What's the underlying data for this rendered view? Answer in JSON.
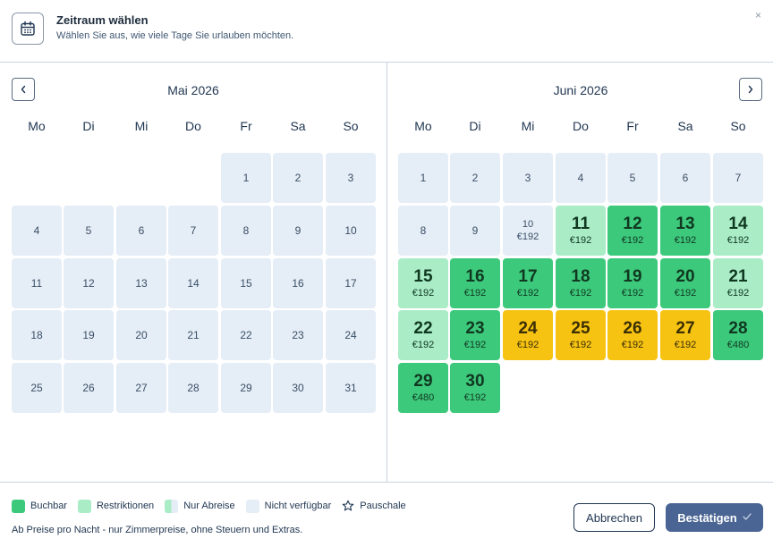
{
  "header": {
    "title": "Zeitraum wählen",
    "subtitle": "Wählen Sie aus, wie viele Tage Sie urlauben möchten.",
    "close_label": "×"
  },
  "weekdays": [
    "Mo",
    "Di",
    "Mi",
    "Do",
    "Fr",
    "Sa",
    "So"
  ],
  "months": [
    {
      "title": "Mai 2026",
      "start_offset": 4,
      "days": [
        {
          "d": "1",
          "s": "na"
        },
        {
          "d": "2",
          "s": "na"
        },
        {
          "d": "3",
          "s": "na"
        },
        {
          "d": "4",
          "s": "na"
        },
        {
          "d": "5",
          "s": "na"
        },
        {
          "d": "6",
          "s": "na"
        },
        {
          "d": "7",
          "s": "na"
        },
        {
          "d": "8",
          "s": "na"
        },
        {
          "d": "9",
          "s": "na"
        },
        {
          "d": "10",
          "s": "na"
        },
        {
          "d": "11",
          "s": "na"
        },
        {
          "d": "12",
          "s": "na"
        },
        {
          "d": "13",
          "s": "na"
        },
        {
          "d": "14",
          "s": "na"
        },
        {
          "d": "15",
          "s": "na"
        },
        {
          "d": "16",
          "s": "na"
        },
        {
          "d": "17",
          "s": "na"
        },
        {
          "d": "18",
          "s": "na"
        },
        {
          "d": "19",
          "s": "na"
        },
        {
          "d": "20",
          "s": "na"
        },
        {
          "d": "21",
          "s": "na"
        },
        {
          "d": "22",
          "s": "na"
        },
        {
          "d": "23",
          "s": "na"
        },
        {
          "d": "24",
          "s": "na"
        },
        {
          "d": "25",
          "s": "na"
        },
        {
          "d": "26",
          "s": "na"
        },
        {
          "d": "27",
          "s": "na"
        },
        {
          "d": "28",
          "s": "na"
        },
        {
          "d": "29",
          "s": "na"
        },
        {
          "d": "30",
          "s": "na"
        },
        {
          "d": "31",
          "s": "na"
        }
      ]
    },
    {
      "title": "Juni 2026",
      "start_offset": 0,
      "days": [
        {
          "d": "1",
          "s": "na"
        },
        {
          "d": "2",
          "s": "na"
        },
        {
          "d": "3",
          "s": "na"
        },
        {
          "d": "4",
          "s": "na"
        },
        {
          "d": "5",
          "s": "na"
        },
        {
          "d": "6",
          "s": "na"
        },
        {
          "d": "7",
          "s": "na"
        },
        {
          "d": "8",
          "s": "na"
        },
        {
          "d": "9",
          "s": "na"
        },
        {
          "d": "10",
          "s": "na",
          "p": "€192"
        },
        {
          "d": "11",
          "s": "restr",
          "p": "€192"
        },
        {
          "d": "12",
          "s": "buch",
          "p": "€192"
        },
        {
          "d": "13",
          "s": "buch",
          "p": "€192"
        },
        {
          "d": "14",
          "s": "restr",
          "p": "€192"
        },
        {
          "d": "15",
          "s": "restr",
          "p": "€192"
        },
        {
          "d": "16",
          "s": "buch",
          "p": "€192"
        },
        {
          "d": "17",
          "s": "buch",
          "p": "€192"
        },
        {
          "d": "18",
          "s": "buch",
          "p": "€192"
        },
        {
          "d": "19",
          "s": "buch",
          "p": "€192"
        },
        {
          "d": "20",
          "s": "buch",
          "p": "€192"
        },
        {
          "d": "21",
          "s": "restr",
          "p": "€192"
        },
        {
          "d": "22",
          "s": "restr",
          "p": "€192"
        },
        {
          "d": "23",
          "s": "buch",
          "p": "€192"
        },
        {
          "d": "24",
          "s": "pausch",
          "p": "€192"
        },
        {
          "d": "25",
          "s": "pausch",
          "p": "€192"
        },
        {
          "d": "26",
          "s": "pausch",
          "p": "€192"
        },
        {
          "d": "27",
          "s": "pausch",
          "p": "€192"
        },
        {
          "d": "28",
          "s": "buch",
          "p": "€480"
        },
        {
          "d": "29",
          "s": "buch",
          "p": "€480"
        },
        {
          "d": "30",
          "s": "buch",
          "p": "€192"
        }
      ]
    }
  ],
  "legend": {
    "buchbar": "Buchbar",
    "restriktionen": "Restriktionen",
    "nur_abreise": "Nur Abreise",
    "nicht_verfuegbar": "Nicht verfügbar",
    "pauschale": "Pauschale"
  },
  "note": "Ab Preise pro Nacht - nur Zimmerpreise, ohne Steuern und Extras.",
  "buttons": {
    "cancel": "Abbrechen",
    "confirm": "Bestätigen"
  },
  "colors": {
    "buchbar": "#3dc97c",
    "restriktionen": "#a9ecc6",
    "pauschale": "#f7c313",
    "nicht_verfuegbar": "#e5edf6",
    "primary": "#4a6593"
  },
  "icons": {
    "header": "calendar-icon",
    "prev": "chevron-left-icon",
    "next": "chevron-right-icon",
    "pauschale": "star-icon",
    "confirm": "check-icon"
  }
}
